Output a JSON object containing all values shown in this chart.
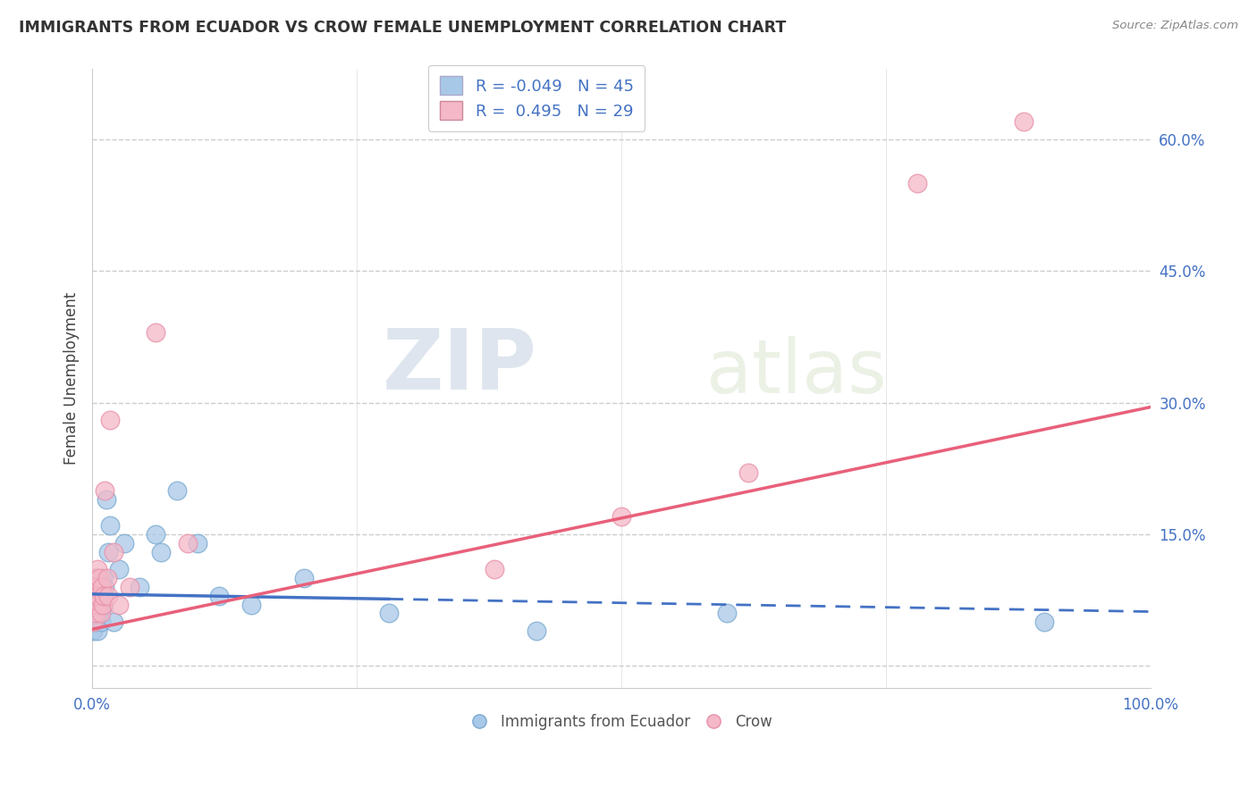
{
  "title": "IMMIGRANTS FROM ECUADOR VS CROW FEMALE UNEMPLOYMENT CORRELATION CHART",
  "source": "Source: ZipAtlas.com",
  "ylabel": "Female Unemployment",
  "series1_name": "Immigrants from Ecuador",
  "series1_color": "#a8c8e8",
  "series1_edge_color": "#7aaad0",
  "series1_line_color": "#4472c4",
  "series1_R": -0.049,
  "series1_N": 45,
  "series2_name": "Crow",
  "series2_color": "#f4b8c8",
  "series2_edge_color": "#e890a8",
  "series2_line_color": "#e8607a",
  "series2_R": 0.495,
  "series2_N": 29,
  "legend_color": "#4472c4",
  "tick_color": "#4472c4",
  "xlim": [
    0.0,
    1.0
  ],
  "ylim": [
    -0.025,
    0.68
  ],
  "yticks": [
    0.0,
    0.15,
    0.3,
    0.45,
    0.6
  ],
  "ytick_labels": [
    "",
    "15.0%",
    "30.0%",
    "45.0%",
    "60.0%"
  ],
  "xticks": [
    0.0,
    0.25,
    0.5,
    0.75,
    1.0
  ],
  "xtick_labels": [
    "0.0%",
    "",
    "",
    "",
    "100.0%"
  ],
  "watermark": "ZIPatlas",
  "series1_x": [
    0.001,
    0.001,
    0.002,
    0.002,
    0.002,
    0.003,
    0.003,
    0.003,
    0.003,
    0.004,
    0.004,
    0.004,
    0.005,
    0.005,
    0.005,
    0.006,
    0.006,
    0.007,
    0.007,
    0.008,
    0.008,
    0.009,
    0.009,
    0.01,
    0.01,
    0.011,
    0.012,
    0.013,
    0.015,
    0.017,
    0.02,
    0.025,
    0.03,
    0.045,
    0.06,
    0.065,
    0.08,
    0.1,
    0.12,
    0.15,
    0.2,
    0.28,
    0.42,
    0.6,
    0.9
  ],
  "series1_y": [
    0.06,
    0.04,
    0.08,
    0.05,
    0.07,
    0.06,
    0.09,
    0.05,
    0.08,
    0.07,
    0.1,
    0.06,
    0.04,
    0.08,
    0.06,
    0.07,
    0.09,
    0.06,
    0.08,
    0.07,
    0.05,
    0.09,
    0.07,
    0.08,
    0.1,
    0.07,
    0.09,
    0.19,
    0.13,
    0.16,
    0.05,
    0.11,
    0.14,
    0.09,
    0.15,
    0.13,
    0.2,
    0.14,
    0.08,
    0.07,
    0.1,
    0.06,
    0.04,
    0.06,
    0.05
  ],
  "series2_x": [
    0.001,
    0.001,
    0.002,
    0.002,
    0.003,
    0.003,
    0.004,
    0.005,
    0.005,
    0.006,
    0.007,
    0.008,
    0.009,
    0.01,
    0.011,
    0.012,
    0.014,
    0.015,
    0.017,
    0.02,
    0.025,
    0.035,
    0.06,
    0.09,
    0.38,
    0.5,
    0.62,
    0.78,
    0.88
  ],
  "series2_y": [
    0.09,
    0.05,
    0.1,
    0.07,
    0.08,
    0.06,
    0.09,
    0.07,
    0.11,
    0.08,
    0.1,
    0.06,
    0.09,
    0.07,
    0.08,
    0.2,
    0.1,
    0.08,
    0.28,
    0.13,
    0.07,
    0.09,
    0.38,
    0.14,
    0.11,
    0.17,
    0.22,
    0.55,
    0.62
  ],
  "trend1_x0": 0.0,
  "trend1_y0": 0.082,
  "trend1_x1": 1.0,
  "trend1_y1": 0.062,
  "trend2_x0": 0.0,
  "trend2_y0": 0.042,
  "trend2_x1": 1.0,
  "trend2_y1": 0.295
}
